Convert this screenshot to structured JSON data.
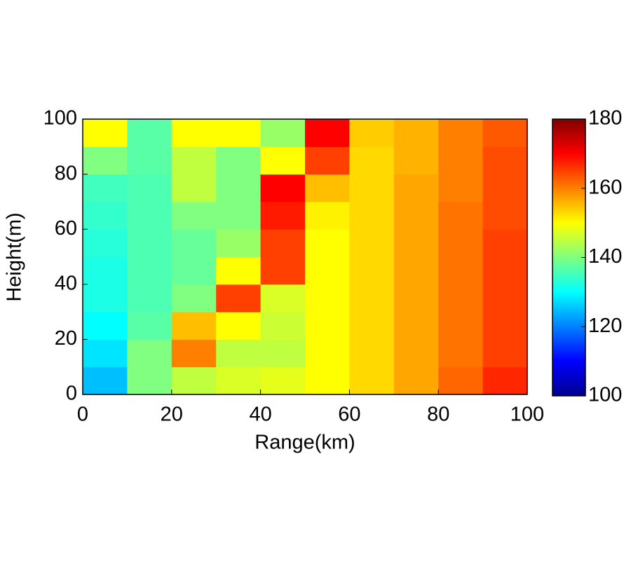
{
  "chart_data": {
    "type": "heatmap",
    "xlabel": "Range(km)",
    "ylabel": "Height(m)",
    "xlim": [
      0,
      100
    ],
    "ylim": [
      0,
      100
    ],
    "xticks": [
      0,
      20,
      40,
      60,
      80,
      100
    ],
    "yticks": [
      0,
      20,
      40,
      60,
      80,
      100
    ],
    "colormap": "jet",
    "clim": [
      100,
      180
    ],
    "cticks": [
      100,
      120,
      140,
      160,
      180
    ],
    "x": [
      5,
      15,
      25,
      35,
      45,
      55,
      65,
      75,
      85,
      95
    ],
    "y": [
      5,
      15,
      25,
      35,
      45,
      55,
      65,
      75,
      85,
      95
    ],
    "z": [
      [
        125,
        140,
        145,
        147,
        148,
        150,
        153,
        157,
        162,
        167
      ],
      [
        128,
        140,
        160,
        145,
        145,
        150,
        153,
        157,
        161,
        165
      ],
      [
        130,
        137,
        155,
        150,
        146,
        150,
        153,
        157,
        161,
        165
      ],
      [
        132,
        136,
        140,
        165,
        147,
        150,
        153,
        157,
        161,
        165
      ],
      [
        132,
        136,
        138,
        150,
        165,
        150,
        153,
        157,
        161,
        165
      ],
      [
        133,
        136,
        138,
        142,
        165,
        150,
        153,
        157,
        161,
        165
      ],
      [
        134,
        136,
        140,
        140,
        168,
        151,
        153,
        157,
        161,
        164
      ],
      [
        135,
        136,
        145,
        140,
        170,
        155,
        153,
        157,
        160,
        164
      ],
      [
        140,
        137,
        145,
        140,
        150,
        165,
        153,
        156,
        160,
        164
      ],
      [
        150,
        137,
        150,
        150,
        142,
        170,
        154,
        156,
        160,
        163
      ]
    ]
  }
}
